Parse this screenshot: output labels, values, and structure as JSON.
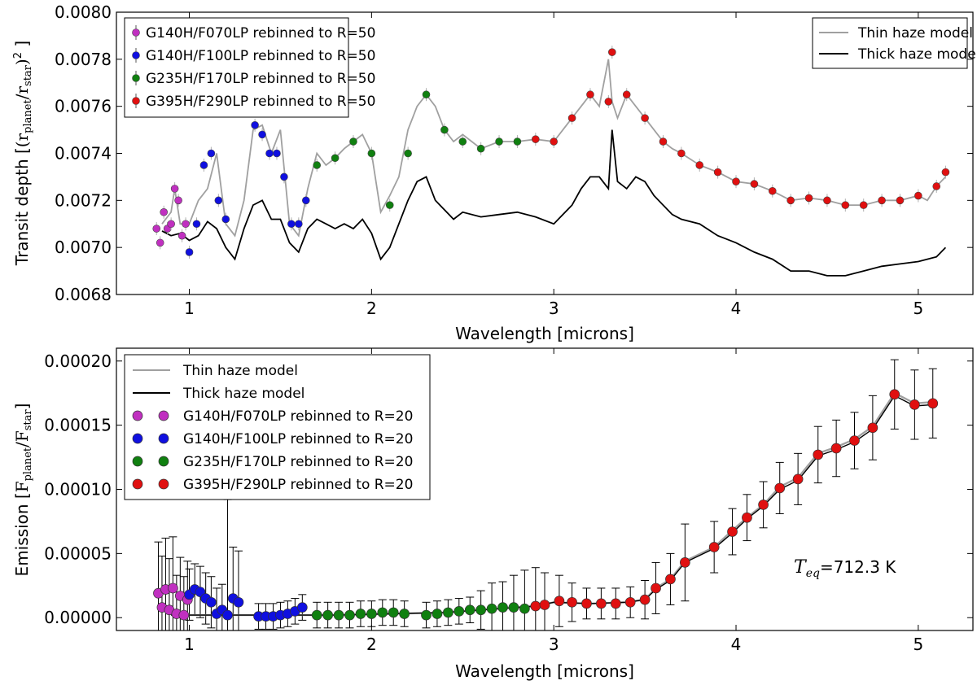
{
  "chart_data": [
    {
      "type": "scatter",
      "ylabel": "Transit depth [(r_planet/r_star)^2]",
      "ylabel_main": "Transit depth ",
      "ylabel_math": "(r",
      "ylabel_sub1": "planet",
      "ylabel_mid": "/r",
      "ylabel_sub2": "star",
      "ylabel_end": ")",
      "ylabel_sup": "2",
      "xlabel": "Wavelength [microns]",
      "xlim": [
        0.6,
        5.3
      ],
      "ylim": [
        0.0068,
        0.008
      ],
      "x_ticks": [
        1,
        2,
        3,
        4,
        5
      ],
      "x_tick_labels": [
        "1",
        "2",
        "3",
        "4",
        "5"
      ],
      "y_ticks": [
        0.0068,
        0.007,
        0.0072,
        0.0074,
        0.0076,
        0.0078,
        0.008
      ],
      "y_tick_labels": [
        "0.0068",
        "0.0070",
        "0.0072",
        "0.0074",
        "0.0076",
        "0.0078",
        "0.0080"
      ],
      "legend_points": {
        "position": "top-left",
        "entries": [
          {
            "label": "G140H/F070LP rebinned to R=50",
            "color": "#c030c0"
          },
          {
            "label": "G140H/F100LP rebinned to R=50",
            "color": "#1010e0"
          },
          {
            "label": "G235H/F170LP rebinned to R=50",
            "color": "#108010"
          },
          {
            "label": "G395H/F290LP rebinned to R=50",
            "color": "#e01010"
          }
        ]
      },
      "legend_models": {
        "position": "top-right",
        "entries": [
          {
            "label": "Thin haze model",
            "color": "#a0a0a0"
          },
          {
            "label": "Thick haze model",
            "color": "#000000"
          }
        ]
      },
      "thin_model_x": [
        0.85,
        0.9,
        0.92,
        0.95,
        1.0,
        1.05,
        1.1,
        1.15,
        1.2,
        1.25,
        1.3,
        1.35,
        1.4,
        1.45,
        1.5,
        1.55,
        1.6,
        1.65,
        1.7,
        1.75,
        1.8,
        1.85,
        1.9,
        1.95,
        2.0,
        2.05,
        2.1,
        2.15,
        2.2,
        2.25,
        2.3,
        2.35,
        2.4,
        2.45,
        2.5,
        2.6,
        2.7,
        2.8,
        2.9,
        3.0,
        3.1,
        3.15,
        3.2,
        3.25,
        3.3,
        3.32,
        3.35,
        3.4,
        3.45,
        3.5,
        3.55,
        3.6,
        3.65,
        3.7,
        3.8,
        3.9,
        4.0,
        4.1,
        4.2,
        4.3,
        4.4,
        4.5,
        4.6,
        4.7,
        4.8,
        4.9,
        5.0,
        5.05,
        5.1,
        5.15
      ],
      "thin_model_y": [
        0.0071,
        0.00715,
        0.00725,
        0.0071,
        0.0071,
        0.0072,
        0.00725,
        0.0074,
        0.0071,
        0.00705,
        0.0072,
        0.0075,
        0.00752,
        0.0074,
        0.0075,
        0.0071,
        0.00705,
        0.00725,
        0.0074,
        0.00735,
        0.00738,
        0.00742,
        0.00745,
        0.00748,
        0.0074,
        0.00715,
        0.00722,
        0.0073,
        0.0075,
        0.0076,
        0.00765,
        0.0076,
        0.0075,
        0.00745,
        0.00748,
        0.00742,
        0.00745,
        0.00745,
        0.00746,
        0.00745,
        0.00755,
        0.0076,
        0.00765,
        0.0076,
        0.0078,
        0.00762,
        0.00755,
        0.00765,
        0.0076,
        0.00755,
        0.0075,
        0.00745,
        0.00742,
        0.0074,
        0.00735,
        0.00732,
        0.00728,
        0.00727,
        0.00724,
        0.0072,
        0.00721,
        0.0072,
        0.00718,
        0.00718,
        0.0072,
        0.0072,
        0.00722,
        0.0072,
        0.00726,
        0.0073
      ],
      "thick_model_x": [
        0.85,
        0.9,
        0.95,
        1.0,
        1.05,
        1.1,
        1.15,
        1.2,
        1.25,
        1.3,
        1.35,
        1.4,
        1.45,
        1.5,
        1.55,
        1.6,
        1.65,
        1.7,
        1.75,
        1.8,
        1.85,
        1.9,
        1.95,
        2.0,
        2.05,
        2.1,
        2.15,
        2.2,
        2.25,
        2.3,
        2.35,
        2.4,
        2.45,
        2.5,
        2.6,
        2.7,
        2.8,
        2.9,
        3.0,
        3.1,
        3.15,
        3.2,
        3.25,
        3.3,
        3.32,
        3.35,
        3.4,
        3.45,
        3.5,
        3.55,
        3.6,
        3.65,
        3.7,
        3.8,
        3.9,
        4.0,
        4.1,
        4.2,
        4.3,
        4.4,
        4.5,
        4.6,
        4.7,
        4.8,
        4.9,
        5.0,
        5.05,
        5.1,
        5.15
      ],
      "thick_model_y": [
        0.00707,
        0.00705,
        0.00706,
        0.00703,
        0.00705,
        0.00711,
        0.00708,
        0.007,
        0.00695,
        0.00708,
        0.00718,
        0.0072,
        0.00712,
        0.00712,
        0.00702,
        0.00698,
        0.00708,
        0.00712,
        0.0071,
        0.00708,
        0.0071,
        0.00708,
        0.00712,
        0.00706,
        0.00695,
        0.007,
        0.0071,
        0.0072,
        0.00728,
        0.0073,
        0.0072,
        0.00716,
        0.00712,
        0.00715,
        0.00713,
        0.00714,
        0.00715,
        0.00713,
        0.0071,
        0.00718,
        0.00725,
        0.0073,
        0.0073,
        0.00725,
        0.0075,
        0.00728,
        0.00725,
        0.0073,
        0.00728,
        0.00722,
        0.00718,
        0.00714,
        0.00712,
        0.0071,
        0.00705,
        0.00702,
        0.00698,
        0.00695,
        0.0069,
        0.0069,
        0.00688,
        0.00688,
        0.0069,
        0.00692,
        0.00693,
        0.00694,
        0.00695,
        0.00696,
        0.007
      ],
      "series": [
        {
          "name": "G140H/F070LP rebinned to R=50",
          "color": "#c030c0",
          "x": [
            0.82,
            0.84,
            0.86,
            0.88,
            0.9,
            0.92,
            0.94,
            0.96,
            0.98
          ],
          "y": [
            0.00708,
            0.00702,
            0.00715,
            0.00708,
            0.0071,
            0.00725,
            0.0072,
            0.00705,
            0.0071
          ]
        },
        {
          "name": "G140H/F100LP rebinned to R=50",
          "color": "#1010e0",
          "x": [
            1.0,
            1.04,
            1.08,
            1.12,
            1.16,
            1.2,
            1.36,
            1.4,
            1.44,
            1.48,
            1.52,
            1.56,
            1.6,
            1.64
          ],
          "y": [
            0.00698,
            0.0071,
            0.00735,
            0.0074,
            0.0072,
            0.00712,
            0.00752,
            0.00748,
            0.0074,
            0.0074,
            0.0073,
            0.0071,
            0.0071,
            0.0072
          ]
        },
        {
          "name": "G235H/F170LP rebinned to R=50",
          "color": "#108010",
          "x": [
            1.7,
            1.8,
            1.9,
            2.0,
            2.1,
            2.2,
            2.3,
            2.4,
            2.5,
            2.6,
            2.7,
            2.8
          ],
          "y": [
            0.00735,
            0.00738,
            0.00745,
            0.0074,
            0.00718,
            0.0074,
            0.00765,
            0.0075,
            0.00745,
            0.00742,
            0.00745,
            0.00745
          ]
        },
        {
          "name": "G395H/F290LP rebinned to R=50",
          "color": "#e01010",
          "x": [
            2.9,
            3.0,
            3.1,
            3.2,
            3.3,
            3.32,
            3.4,
            3.5,
            3.6,
            3.7,
            3.8,
            3.9,
            4.0,
            4.1,
            4.2,
            4.3,
            4.4,
            4.5,
            4.6,
            4.7,
            4.8,
            4.9,
            5.0,
            5.1,
            5.15
          ],
          "y": [
            0.00746,
            0.00745,
            0.00755,
            0.00765,
            0.00762,
            0.00783,
            0.00765,
            0.00755,
            0.00745,
            0.0074,
            0.00735,
            0.00732,
            0.00728,
            0.00727,
            0.00724,
            0.0072,
            0.00721,
            0.0072,
            0.00718,
            0.00718,
            0.0072,
            0.0072,
            0.00722,
            0.00726,
            0.00732
          ]
        }
      ]
    },
    {
      "type": "scatter",
      "ylabel": "Emission [F_planet/F_star]",
      "ylabel_main": "Emission ",
      "ylabel_math": "F",
      "ylabel_sub1": "planet",
      "ylabel_mid": "/F",
      "ylabel_sub2": "star",
      "xlabel": "Wavelength [microns]",
      "xlim": [
        0.6,
        5.3
      ],
      "ylim": [
        -1e-05,
        0.00021
      ],
      "x_ticks": [
        1,
        2,
        3,
        4,
        5
      ],
      "x_tick_labels": [
        "1",
        "2",
        "3",
        "4",
        "5"
      ],
      "y_ticks": [
        0,
        5e-05,
        0.0001,
        0.00015,
        0.0002
      ],
      "y_tick_labels": [
        "0.00000",
        "0.00005",
        "0.00010",
        "0.00015",
        "0.00020"
      ],
      "annotation": {
        "label": "T_eq=712.3 K",
        "prefix": "T",
        "sub": "eq",
        "suffix": "=712.3 K"
      },
      "legend": {
        "position": "top-left",
        "entries": [
          {
            "label": "Thin haze model",
            "color": "#a0a0a0",
            "kind": "line"
          },
          {
            "label": "Thick haze model",
            "color": "#000000",
            "kind": "line"
          },
          {
            "label": "G140H/F070LP rebinned to R=20",
            "color": "#c030c0",
            "kind": "point"
          },
          {
            "label": "G140H/F100LP rebinned to R=20",
            "color": "#1010e0",
            "kind": "point"
          },
          {
            "label": "G235H/F170LP rebinned to R=20",
            "color": "#108010",
            "kind": "point"
          },
          {
            "label": "G395H/F290LP rebinned to R=20",
            "color": "#e01010",
            "kind": "point"
          }
        ]
      },
      "series": [
        {
          "name": "G140H/F070LP rebinned to R=20",
          "color": "#c030c0",
          "x": [
            0.83,
            0.85,
            0.87,
            0.89,
            0.91,
            0.93,
            0.95,
            0.97,
            0.99
          ],
          "y": [
            1.9e-05,
            8e-06,
            2.2e-05,
            6e-06,
            2.3e-05,
            3e-06,
            1.7e-05,
            2e-06,
            1.4e-05
          ],
          "err": [
            4e-05,
            4e-05,
            4e-05,
            4e-05,
            4e-05,
            3e-05,
            3e-05,
            3e-05,
            3e-05
          ]
        },
        {
          "name": "G140H/F100LP rebinned to R=20",
          "color": "#1010e0",
          "x": [
            1.0,
            1.03,
            1.06,
            1.09,
            1.12,
            1.15,
            1.18,
            1.21,
            1.24,
            1.27,
            1.38,
            1.42,
            1.46,
            1.5,
            1.54,
            1.58,
            1.62
          ],
          "y": [
            1.8e-05,
            2.2e-05,
            2e-05,
            1.5e-05,
            1.2e-05,
            3e-06,
            6e-06,
            2e-06,
            1.5e-05,
            1.2e-05,
            1e-06,
            1e-06,
            1e-06,
            2e-06,
            3e-06,
            5e-06,
            8e-06
          ],
          "err": [
            2e-05,
            2e-05,
            2e-05,
            2e-05,
            2e-05,
            2e-05,
            2e-05,
            9e-05,
            4e-05,
            4e-05,
            1e-05,
            1e-05,
            1e-05,
            1e-05,
            1e-05,
            1e-05,
            1e-05
          ]
        },
        {
          "name": "G235H/F170LP rebinned to R=20",
          "color": "#108010",
          "x": [
            1.7,
            1.76,
            1.82,
            1.88,
            1.94,
            2.0,
            2.06,
            2.12,
            2.18,
            2.3,
            2.36,
            2.42,
            2.48,
            2.54,
            2.6,
            2.66,
            2.72,
            2.78,
            2.84
          ],
          "y": [
            2e-06,
            2e-06,
            2e-06,
            2e-06,
            3e-06,
            3e-06,
            4e-06,
            4e-06,
            3e-06,
            2e-06,
            3e-06,
            4e-06,
            5e-06,
            6e-06,
            6e-06,
            7e-06,
            8e-06,
            8e-06,
            7e-06
          ],
          "err": [
            1e-05,
            1e-05,
            1e-05,
            1e-05,
            1e-05,
            1e-05,
            1e-05,
            1e-05,
            1e-05,
            1e-05,
            1e-05,
            1e-05,
            1e-05,
            1e-05,
            1.5e-05,
            2e-05,
            2e-05,
            2.5e-05,
            3e-05
          ]
        },
        {
          "name": "G395H/F290LP rebinned to R=20",
          "color": "#e01010",
          "x": [
            2.9,
            2.95,
            3.03,
            3.1,
            3.18,
            3.26,
            3.34,
            3.42,
            3.5,
            3.56,
            3.64,
            3.72,
            3.88,
            3.98,
            4.06,
            4.15,
            4.24,
            4.34,
            4.45,
            4.55,
            4.65,
            4.75,
            4.87,
            4.98,
            5.08
          ],
          "y": [
            9e-06,
            1e-05,
            1.3e-05,
            1.2e-05,
            1.1e-05,
            1.1e-05,
            1.1e-05,
            1.2e-05,
            1.4e-05,
            2.3e-05,
            3e-05,
            4.3e-05,
            5.5e-05,
            6.7e-05,
            7.8e-05,
            8.8e-05,
            0.000101,
            0.000108,
            0.000127,
            0.000132,
            0.000138,
            0.000148,
            0.000174,
            0.000166,
            0.000167
          ],
          "err": [
            3e-05,
            2.5e-05,
            2e-05,
            1.5e-05,
            1.2e-05,
            1.2e-05,
            1.2e-05,
            1.2e-05,
            1.5e-05,
            2e-05,
            2e-05,
            3e-05,
            2e-05,
            1.8e-05,
            1.8e-05,
            1.8e-05,
            2e-05,
            2e-05,
            2.2e-05,
            2.2e-05,
            2.2e-05,
            2.5e-05,
            2.7e-05,
            2.7e-05,
            2.7e-05
          ]
        }
      ],
      "thin_model_x": [
        0.9,
        1.2,
        1.5,
        1.8,
        2.1,
        2.4,
        2.7,
        2.9,
        3.0,
        3.2,
        3.4,
        3.5,
        3.56,
        3.64,
        3.72,
        3.88,
        3.98,
        4.06,
        4.15,
        4.24,
        4.34,
        4.45,
        4.55,
        4.65,
        4.75,
        4.87,
        4.98,
        5.08
      ],
      "thin_model_y": [
        2e-06,
        2e-06,
        2e-06,
        2e-06,
        3e-06,
        4e-06,
        7e-06,
        9e-06,
        1.2e-05,
        1.1e-05,
        1.2e-05,
        1.4e-05,
        2.3e-05,
        3e-05,
        4.4e-05,
        5.5e-05,
        6.8e-05,
        7.8e-05,
        8.8e-05,
        0.000102,
        0.000109,
        0.000128,
        0.000133,
        0.000139,
        0.000149,
        0.000175,
        0.000167,
        0.000168
      ],
      "thick_model_x": [
        0.9,
        1.2,
        1.5,
        1.8,
        2.1,
        2.4,
        2.7,
        2.9,
        3.0,
        3.2,
        3.4,
        3.5,
        3.56,
        3.64,
        3.72,
        3.88,
        3.98,
        4.06,
        4.15,
        4.24,
        4.34,
        4.45,
        4.55,
        4.65,
        4.75,
        4.87,
        4.98,
        5.08
      ],
      "thick_model_y": [
        2e-06,
        2e-06,
        2e-06,
        2e-06,
        3e-06,
        4e-06,
        7e-06,
        9e-06,
        1.2e-05,
        1.1e-05,
        1.2e-05,
        1.4e-05,
        2.2e-05,
        2.9e-05,
        4.3e-05,
        5.4e-05,
        6.6e-05,
        7.7e-05,
        8.7e-05,
        0.0001,
        0.000107,
        0.000126,
        0.000131,
        0.000137,
        0.000147,
        0.000173,
        0.000165,
        0.000166
      ]
    }
  ]
}
